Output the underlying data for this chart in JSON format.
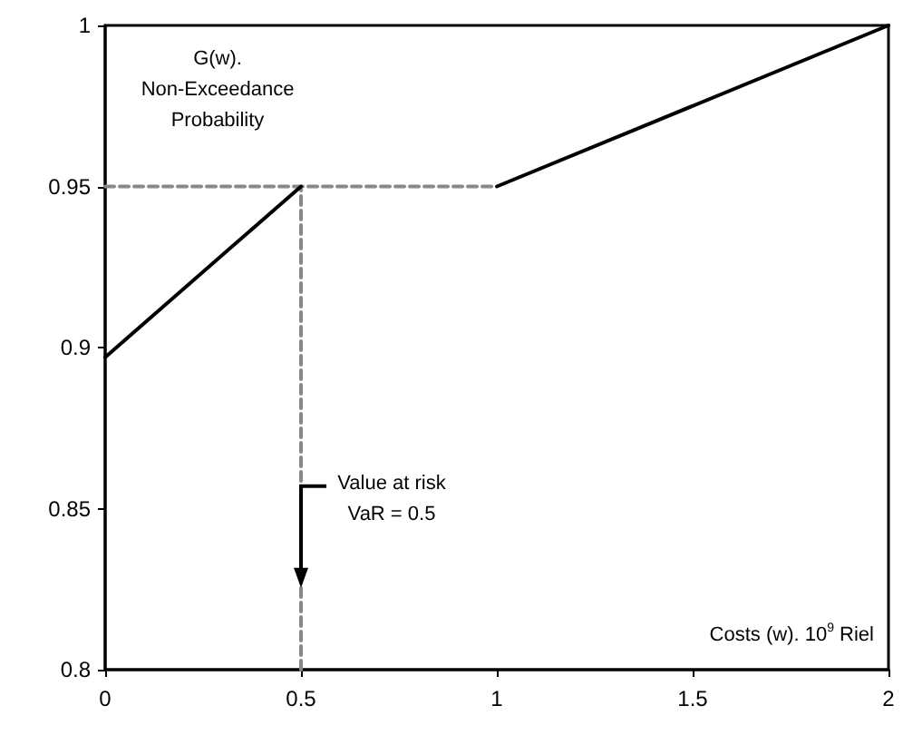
{
  "chart_data": {
    "type": "line",
    "xlabel": "Costs (w). 10$^{9}$ Riel",
    "ylabel": "G(w).\nNon-Exceedance\nProbability",
    "series": [
      {
        "x": [
          0,
          0.5
        ],
        "values": [
          0.897,
          0.95
        ],
        "color": "#000000",
        "line_style": "solid"
      },
      {
        "x": [
          1,
          2
        ],
        "values": [
          0.95,
          1
        ],
        "color": "#000000",
        "line_style": "solid"
      },
      {
        "x": [
          0,
          1
        ],
        "values": [
          0.95,
          0.95
        ],
        "color": "#888888",
        "line_style": "dashed"
      },
      {
        "x": [
          0.5,
          0.5
        ],
        "values": [
          0.8,
          0.95
        ],
        "color": "#888888",
        "line_style": "dashed"
      }
    ],
    "annotations": [
      {
        "text": "Value at risk\nVaR = 0.5",
        "x": 0.5,
        "y": 0.857
      }
    ],
    "xlim": [
      0,
      2
    ],
    "xticks": [
      0,
      0.5,
      1,
      1.5,
      2
    ],
    "ylim": [
      0.8,
      1
    ],
    "yticks": [
      0.8,
      0.85,
      0.9,
      0.95,
      1
    ],
    "grid": false,
    "marker": "none"
  }
}
